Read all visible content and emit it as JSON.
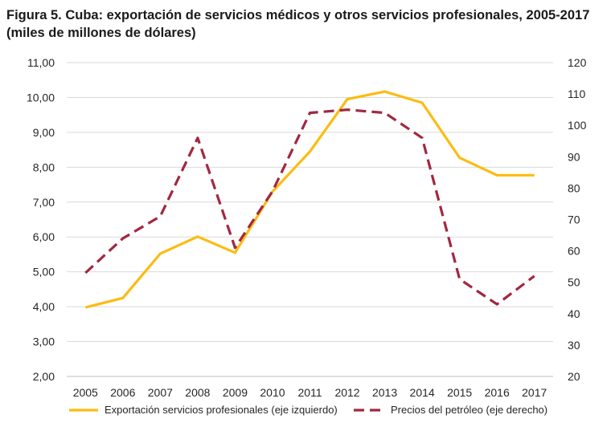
{
  "chart_data": {
    "type": "line",
    "title": "Figura 5. Cuba: exportación de servicios médicos y otros servicios profesionales, 2005-2017 (miles de millones de dólares)",
    "x": [
      "2005",
      "2006",
      "2007",
      "2008",
      "2009",
      "2010",
      "2011",
      "2012",
      "2013",
      "2014",
      "2015",
      "2016",
      "2017"
    ],
    "left_axis": {
      "ylim": [
        2,
        11
      ],
      "ticks": [
        "2,00",
        "3,00",
        "4,00",
        "5,00",
        "6,00",
        "7,00",
        "8,00",
        "9,00",
        "10,00",
        "11,00"
      ],
      "tick_values": [
        2,
        3,
        4,
        5,
        6,
        7,
        8,
        9,
        10,
        11
      ]
    },
    "right_axis": {
      "ylim": [
        20,
        120
      ],
      "ticks": [
        "20",
        "30",
        "40",
        "50",
        "60",
        "70",
        "80",
        "90",
        "100",
        "110",
        "120"
      ],
      "tick_values": [
        20,
        30,
        40,
        50,
        60,
        70,
        80,
        90,
        100,
        110,
        120
      ]
    },
    "series": [
      {
        "name": "Exportación servicios profesionales (eje izquierdo)",
        "axis": "left",
        "color": "#fbbc12",
        "style": "solid",
        "values": [
          3.98,
          4.25,
          5.52,
          6.01,
          5.55,
          7.3,
          8.45,
          9.95,
          10.17,
          9.85,
          8.27,
          7.77,
          7.77
        ]
      },
      {
        "name": "Precios del petróleo (eje derecho)",
        "axis": "right",
        "color": "#a12840",
        "style": "dashed",
        "values": [
          53,
          64,
          71,
          96,
          61,
          79,
          104,
          105,
          104,
          96,
          51,
          43,
          52
        ]
      }
    ],
    "grid": true,
    "legend_position": "bottom"
  }
}
